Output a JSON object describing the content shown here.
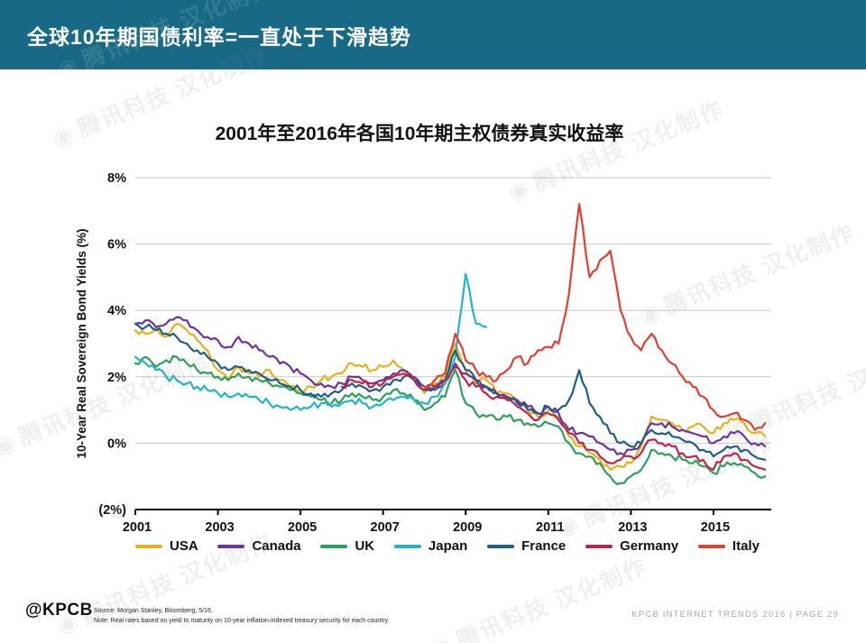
{
  "header": {
    "title": "全球10年期国债利率=一直处于下滑趋势"
  },
  "watermark": {
    "text": "腾讯科技 汉化制作"
  },
  "chart_data": {
    "type": "line",
    "title": "2001年至2016年各国10年期主权债券真实收益率",
    "ylabel": "10-Year Real Sovereign Bond Yields (%)",
    "x_start": 2001,
    "x_step": 0.25,
    "xlim": [
      2001,
      2016.4
    ],
    "ylim": [
      -2,
      8
    ],
    "grid": "horizontal",
    "legend_position": "bottom",
    "y_ticks": [
      {
        "v": 8,
        "label": "8%"
      },
      {
        "v": 6,
        "label": "6%"
      },
      {
        "v": 4,
        "label": "4%"
      },
      {
        "v": 2,
        "label": "2%"
      },
      {
        "v": 0,
        "label": "0%"
      },
      {
        "v": -2,
        "label": "(2%)"
      }
    ],
    "x_ticks": [
      2001,
      2003,
      2005,
      2007,
      2009,
      2011,
      2013,
      2015
    ],
    "series": [
      {
        "name": "USA",
        "color": "#e9b018",
        "values": [
          3.4,
          3.3,
          3.5,
          3.2,
          3.6,
          3.4,
          3.1,
          2.8,
          2.2,
          1.9,
          2.3,
          2.1,
          2.0,
          2.2,
          1.9,
          1.7,
          1.6,
          1.7,
          1.9,
          2.0,
          2.1,
          2.4,
          2.3,
          2.2,
          2.3,
          2.5,
          2.2,
          1.9,
          1.5,
          1.8,
          2.0,
          3.0,
          2.2,
          1.8,
          1.9,
          1.5,
          1.5,
          1.3,
          1.0,
          0.8,
          1.0,
          0.8,
          0.2,
          -0.1,
          -0.3,
          -0.5,
          -0.8,
          -0.7,
          -0.6,
          -0.1,
          0.8,
          0.7,
          0.6,
          0.4,
          0.5,
          0.5,
          0.3,
          0.6,
          0.7,
          0.6,
          0.3,
          0.2
        ]
      },
      {
        "name": "Canada",
        "color": "#7030a0",
        "values": [
          3.6,
          3.7,
          3.5,
          3.6,
          3.8,
          3.7,
          3.4,
          3.2,
          3.1,
          2.9,
          3.2,
          3.0,
          2.8,
          2.6,
          2.4,
          2.3,
          2.1,
          1.9,
          1.8,
          1.7,
          1.8,
          2.0,
          1.9,
          1.8,
          1.9,
          2.1,
          2.2,
          2.0,
          1.7,
          1.6,
          1.8,
          2.4,
          2.1,
          1.9,
          1.7,
          1.5,
          1.4,
          1.3,
          1.1,
          0.9,
          1.1,
          0.9,
          0.4,
          0.3,
          0.2,
          0.0,
          -0.2,
          -0.3,
          -0.2,
          0.0,
          0.6,
          0.6,
          0.5,
          0.4,
          0.3,
          0.2,
          0.0,
          0.2,
          0.3,
          0.2,
          0.0,
          -0.1
        ]
      },
      {
        "name": "UK",
        "color": "#2aa158",
        "values": [
          2.4,
          2.6,
          2.3,
          2.5,
          2.6,
          2.4,
          2.2,
          2.1,
          2.0,
          1.9,
          2.1,
          2.0,
          1.9,
          1.8,
          1.7,
          1.6,
          1.5,
          1.4,
          1.3,
          1.2,
          1.3,
          1.5,
          1.4,
          1.3,
          1.4,
          1.6,
          1.5,
          1.3,
          1.0,
          1.2,
          1.4,
          2.2,
          1.2,
          0.9,
          0.8,
          0.7,
          0.8,
          0.7,
          0.6,
          0.5,
          0.6,
          0.5,
          0.0,
          -0.3,
          -0.4,
          -0.6,
          -1.0,
          -1.2,
          -1.0,
          -0.8,
          -0.2,
          -0.3,
          -0.4,
          -0.5,
          -0.6,
          -0.7,
          -0.9,
          -0.7,
          -0.6,
          -0.7,
          -0.9,
          -1.0
        ]
      },
      {
        "name": "Japan",
        "color": "#22b5c9",
        "values": [
          2.6,
          2.4,
          2.2,
          2.0,
          1.9,
          1.8,
          1.7,
          1.6,
          1.5,
          1.4,
          1.5,
          1.4,
          1.3,
          1.2,
          1.1,
          1.0,
          1.0,
          1.1,
          1.2,
          1.1,
          1.2,
          1.3,
          1.2,
          1.1,
          1.2,
          1.3,
          1.4,
          1.3,
          1.2,
          1.4,
          1.8,
          2.6,
          5.1,
          3.6,
          3.5,
          null,
          null,
          null,
          null,
          null,
          null,
          null,
          null,
          null,
          null,
          null,
          null,
          null,
          null,
          null,
          null,
          null,
          null,
          null,
          null,
          null,
          null,
          null,
          null,
          null,
          null,
          null
        ]
      },
      {
        "name": "France",
        "color": "#1d5e86",
        "values": [
          3.6,
          3.5,
          3.4,
          3.3,
          3.2,
          3.0,
          2.8,
          2.6,
          2.4,
          2.2,
          2.3,
          2.2,
          2.1,
          1.9,
          1.8,
          1.7,
          1.6,
          1.5,
          1.4,
          1.5,
          1.6,
          1.8,
          1.7,
          1.6,
          1.7,
          1.9,
          2.0,
          1.9,
          1.6,
          1.7,
          1.9,
          2.8,
          2.2,
          1.9,
          1.7,
          1.5,
          1.4,
          1.2,
          1.0,
          0.9,
          1.1,
          1.0,
          1.3,
          2.2,
          1.2,
          0.8,
          0.3,
          0.0,
          -0.1,
          0.0,
          0.4,
          0.3,
          0.2,
          0.1,
          0.0,
          -0.2,
          -0.4,
          -0.2,
          -0.1,
          -0.2,
          -0.4,
          -0.5
        ]
      },
      {
        "name": "Germany",
        "color": "#bf2349",
        "values": [
          null,
          null,
          null,
          null,
          null,
          null,
          null,
          null,
          null,
          null,
          null,
          null,
          null,
          null,
          null,
          null,
          null,
          null,
          null,
          null,
          1.7,
          1.9,
          1.8,
          1.7,
          1.8,
          2.0,
          2.1,
          1.9,
          1.6,
          1.7,
          1.9,
          2.3,
          1.9,
          1.7,
          1.5,
          1.4,
          1.3,
          1.1,
          0.9,
          0.7,
          0.9,
          0.7,
          0.3,
          0.0,
          -0.2,
          -0.4,
          -0.6,
          -0.5,
          -0.4,
          -0.3,
          0.1,
          0.0,
          -0.1,
          -0.3,
          -0.4,
          -0.5,
          -0.8,
          -0.4,
          -0.3,
          -0.5,
          -0.7,
          -0.8
        ]
      },
      {
        "name": "Italy",
        "color": "#e43d30",
        "values": [
          null,
          null,
          null,
          null,
          null,
          null,
          null,
          null,
          null,
          null,
          null,
          null,
          null,
          null,
          null,
          null,
          null,
          null,
          null,
          null,
          null,
          null,
          null,
          null,
          null,
          null,
          null,
          null,
          1.7,
          1.9,
          2.1,
          3.3,
          2.5,
          2.2,
          2.0,
          1.9,
          2.2,
          2.6,
          2.4,
          2.8,
          2.9,
          3.0,
          4.5,
          7.2,
          5.0,
          5.5,
          5.8,
          4.0,
          3.2,
          2.8,
          3.3,
          2.8,
          2.4,
          2.0,
          1.7,
          1.4,
          1.0,
          0.8,
          0.9,
          0.7,
          0.4,
          0.6
        ]
      }
    ]
  },
  "footer": {
    "logo": "@KPCB",
    "source_line1": "Source: Morgan Stanley, Bloomberg, 5/16.",
    "source_line2": "Note: Real rates based on yield to maturity on 10-year inflation-indexed treasury security for each country.",
    "right_text": "KPCB INTERNET TRENDS 2016   |   PAGE 29"
  }
}
